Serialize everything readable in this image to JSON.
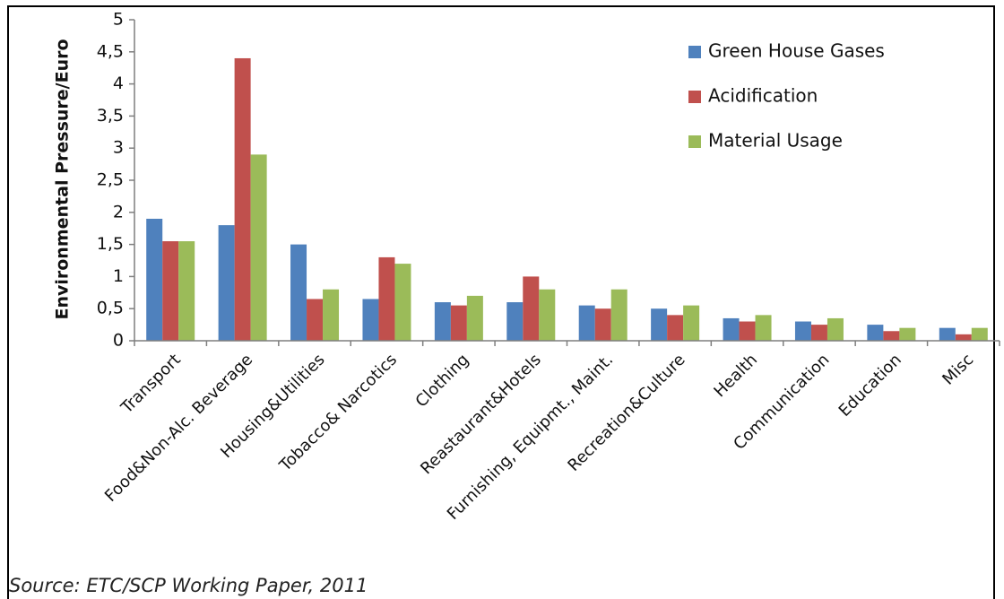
{
  "chart_data": {
    "type": "bar",
    "ylabel": "Environmental Pressure/Euro",
    "xlabel": "",
    "ylim": [
      0,
      5
    ],
    "y_ticks": [
      "0",
      "0,5",
      "1",
      "1,5",
      "2",
      "2,5",
      "3",
      "3,5",
      "4",
      "4,5",
      "5"
    ],
    "grid": false,
    "legend_position": "top-right",
    "categories": [
      "Transport",
      "Food&Non-Alc. Beverage",
      "Housing&Utilities",
      "Tobacco& Narcotics",
      "Clothing",
      "Reastaurant&Hotels",
      "Furnishing, Equipmt., Maint.",
      "Recreation&Culture",
      "Health",
      "Communication",
      "Education",
      "Misc"
    ],
    "series": [
      {
        "name": "Green House Gases",
        "color": "#4F81BD",
        "values": [
          1.9,
          1.8,
          1.5,
          0.65,
          0.6,
          0.6,
          0.55,
          0.5,
          0.35,
          0.3,
          0.25,
          0.2
        ]
      },
      {
        "name": "Acidification",
        "color": "#C0504D",
        "values": [
          1.55,
          4.4,
          0.65,
          1.3,
          0.55,
          1.0,
          0.5,
          0.4,
          0.3,
          0.25,
          0.15,
          0.1
        ]
      },
      {
        "name": "Material Usage",
        "color": "#9BBB59",
        "values": [
          1.55,
          2.9,
          0.8,
          1.2,
          0.7,
          0.8,
          0.8,
          0.55,
          0.4,
          0.35,
          0.2,
          0.2
        ]
      }
    ],
    "source": "Source: ETC/SCP Working Paper, 2011"
  }
}
